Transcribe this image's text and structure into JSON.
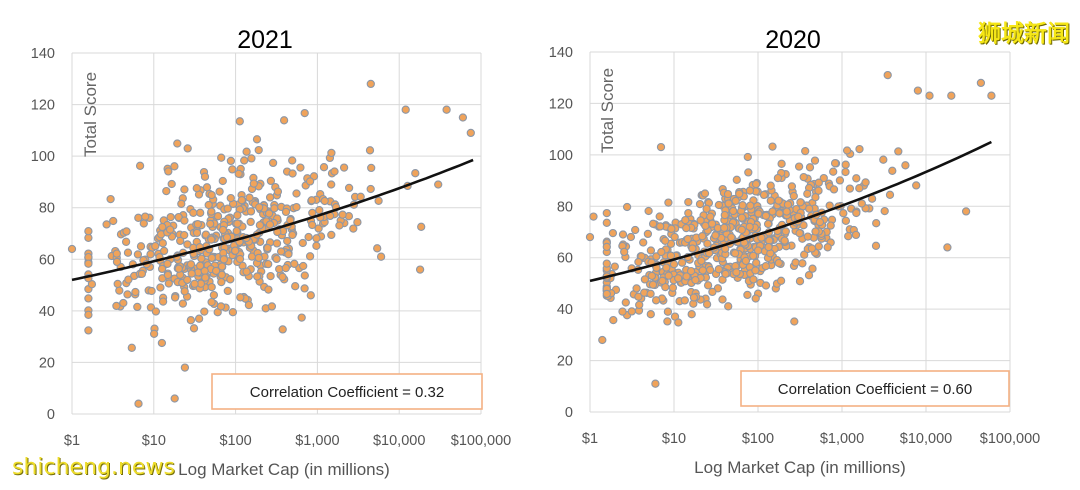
{
  "watermarks": {
    "brand_cn": "狮城新闻",
    "site": "shicheng.news"
  },
  "colors": {
    "point_fill": "#f0a35a",
    "point_stroke": "#8d97a6",
    "trend_line": "#111111",
    "box_border": "#f4b183"
  },
  "chart_data": [
    {
      "type": "scatter",
      "title": "2021",
      "xlabel": "Log Market Cap (in millions)",
      "ylabel": "Total Score",
      "x_scale": "log10",
      "xlim": [
        1,
        100000
      ],
      "ylim": [
        0,
        140
      ],
      "grid": true,
      "xticks": [
        1,
        10,
        100,
        1000,
        10000,
        100000
      ],
      "xtick_labels": [
        "$1",
        "$10",
        "$100",
        "$1,000",
        "$10,000",
        "$100,000"
      ],
      "yticks": [
        0,
        20,
        40,
        60,
        80,
        100,
        120,
        140
      ],
      "ytick_labels": [
        "0",
        "20",
        "40",
        "60",
        "80",
        "100",
        "120",
        "140"
      ],
      "trendline": {
        "type": "exponential",
        "x": [
          1,
          80000
        ],
        "y": [
          52,
          98.5
        ]
      },
      "annotation": "Correlation Coefficient = 0.32",
      "correlation": 0.32,
      "sample": {
        "n": 520,
        "seed": 2021,
        "log_mean": 1.85,
        "log_sd": 0.78,
        "resid_sd": 13.5,
        "clip": [
          0.2,
          4.95
        ]
      },
      "highlighted_points": [
        {
          "x": 1,
          "y": 64
        },
        {
          "x": 6.5,
          "y": 4
        },
        {
          "x": 18,
          "y": 6
        },
        {
          "x": 24,
          "y": 18
        },
        {
          "x": 26,
          "y": 103
        },
        {
          "x": 4500,
          "y": 128
        },
        {
          "x": 12000,
          "y": 118
        },
        {
          "x": 38000,
          "y": 118
        },
        {
          "x": 60000,
          "y": 115
        },
        {
          "x": 75000,
          "y": 109
        },
        {
          "x": 18000,
          "y": 56
        },
        {
          "x": 30000,
          "y": 89
        },
        {
          "x": 6000,
          "y": 61
        }
      ]
    },
    {
      "type": "scatter",
      "title": "2020",
      "xlabel": "Log Market Cap (in millions)",
      "ylabel": "Total Score",
      "x_scale": "log10",
      "xlim": [
        1,
        100000
      ],
      "ylim": [
        0,
        140
      ],
      "grid": true,
      "xticks": [
        1,
        10,
        100,
        1000,
        10000,
        100000
      ],
      "xtick_labels": [
        "$1",
        "$10",
        "$100",
        "$1,000",
        "$10,000",
        "$100,000"
      ],
      "yticks": [
        0,
        20,
        40,
        60,
        80,
        100,
        120,
        140
      ],
      "ytick_labels": [
        "0",
        "20",
        "40",
        "60",
        "80",
        "100",
        "120",
        "140"
      ],
      "trendline": {
        "type": "exponential",
        "x": [
          1,
          60000
        ],
        "y": [
          51,
          105
        ]
      },
      "annotation": "Correlation Coefficient = 0.60",
      "correlation": 0.6,
      "sample": {
        "n": 620,
        "seed": 2020,
        "log_mean": 1.7,
        "log_sd": 0.8,
        "resid_sd": 11,
        "clip": [
          0.2,
          4.85
        ]
      },
      "highlighted_points": [
        {
          "x": 1,
          "y": 68
        },
        {
          "x": 1.1,
          "y": 76
        },
        {
          "x": 1.4,
          "y": 28
        },
        {
          "x": 6,
          "y": 11
        },
        {
          "x": 7,
          "y": 103
        },
        {
          "x": 3500,
          "y": 131
        },
        {
          "x": 8000,
          "y": 125
        },
        {
          "x": 11000,
          "y": 123
        },
        {
          "x": 20000,
          "y": 123
        },
        {
          "x": 45000,
          "y": 128
        },
        {
          "x": 60000,
          "y": 123
        },
        {
          "x": 18000,
          "y": 64
        },
        {
          "x": 30000,
          "y": 78
        }
      ]
    }
  ]
}
